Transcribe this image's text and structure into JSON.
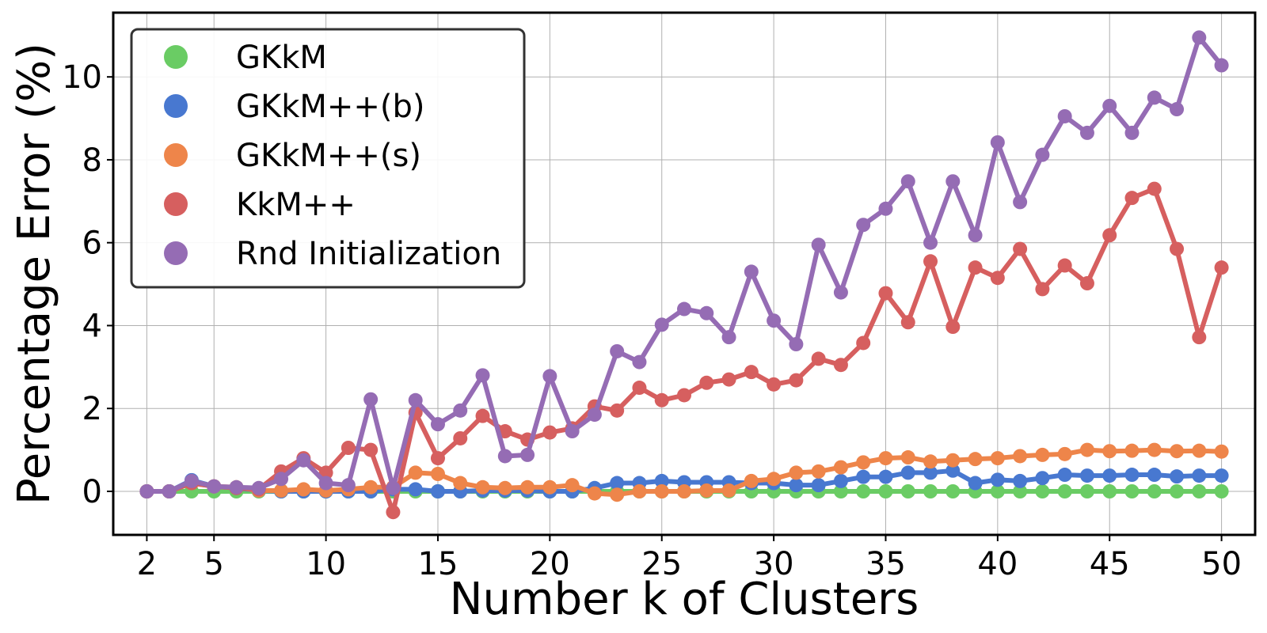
{
  "chart_data": {
    "type": "line",
    "xlabel": "Number k of Clusters",
    "ylabel": "Percentage Error (%)",
    "xlim": [
      0.5,
      51.5
    ],
    "ylim": [
      -1.05,
      11.55
    ],
    "xticks": [
      2,
      5,
      10,
      15,
      20,
      25,
      30,
      35,
      40,
      45,
      50
    ],
    "yticks": [
      0,
      2,
      4,
      6,
      8,
      10
    ],
    "grid": true,
    "legend_position": "top-left",
    "x": [
      2,
      3,
      4,
      5,
      6,
      7,
      8,
      9,
      10,
      11,
      12,
      13,
      14,
      15,
      16,
      17,
      18,
      19,
      20,
      21,
      22,
      23,
      24,
      25,
      26,
      27,
      28,
      29,
      30,
      31,
      32,
      33,
      34,
      35,
      36,
      37,
      38,
      39,
      40,
      41,
      42,
      43,
      44,
      45,
      46,
      47,
      48,
      49,
      50
    ],
    "series": [
      {
        "name": "GKkM",
        "color": "#6acc64",
        "values": [
          0,
          0,
          0,
          0,
          0,
          0,
          0,
          0,
          0,
          0,
          0,
          0,
          0,
          0,
          0,
          0,
          0,
          0,
          0,
          0,
          0,
          0,
          0,
          0,
          0,
          0,
          0,
          0,
          0,
          0,
          0,
          0,
          0,
          0,
          0,
          0,
          0,
          0,
          0,
          0,
          0,
          0,
          0,
          0,
          0,
          0,
          0,
          0,
          0
        ]
      },
      {
        "name": "GKkM++(b)",
        "color": "#4878d0",
        "values": [
          0,
          0,
          0.27,
          0.12,
          0.08,
          0.02,
          0,
          0,
          0,
          0,
          0,
          0.05,
          0.05,
          0,
          0,
          0.02,
          0.02,
          0.02,
          0,
          0,
          0.08,
          0.2,
          0.2,
          0.25,
          0.22,
          0.22,
          0.22,
          0.2,
          0.2,
          0.15,
          0.15,
          0.25,
          0.35,
          0.35,
          0.45,
          0.45,
          0.5,
          0.2,
          0.28,
          0.25,
          0.32,
          0.4,
          0.38,
          0.38,
          0.4,
          0.4,
          0.36,
          0.38,
          0.38
        ]
      },
      {
        "name": "GKkM++(s)",
        "color": "#ee854a",
        "values": [
          0,
          0,
          0.2,
          0.12,
          0.1,
          0.02,
          0.02,
          0.05,
          0.02,
          0.05,
          0.1,
          0.1,
          0.45,
          0.42,
          0.2,
          0.1,
          0.08,
          0.1,
          0.1,
          0.15,
          -0.05,
          -0.08,
          0,
          0,
          0,
          0.02,
          0.02,
          0.25,
          0.3,
          0.45,
          0.48,
          0.58,
          0.7,
          0.8,
          0.82,
          0.72,
          0.75,
          0.78,
          0.8,
          0.85,
          0.88,
          0.9,
          1.0,
          0.97,
          0.98,
          1.0,
          0.97,
          0.98,
          0.96
        ]
      },
      {
        "name": "KkM++",
        "color": "#d65f5f",
        "values": [
          0,
          0,
          0.2,
          0.12,
          0.08,
          0.05,
          0.48,
          0.8,
          0.45,
          1.05,
          1.0,
          -0.5,
          1.9,
          0.8,
          1.28,
          1.82,
          1.45,
          1.25,
          1.42,
          1.52,
          2.05,
          1.95,
          2.5,
          2.2,
          2.32,
          2.62,
          2.7,
          2.88,
          2.58,
          2.68,
          3.2,
          3.05,
          3.58,
          4.78,
          4.08,
          5.55,
          3.97,
          5.4,
          5.15,
          5.85,
          4.88,
          5.45,
          5.02,
          6.18,
          7.08,
          7.3,
          5.85,
          3.72,
          5.4
        ]
      },
      {
        "name": "Rnd Initialization",
        "color": "#956cb4",
        "values": [
          0,
          0,
          0.25,
          0.12,
          0.1,
          0.08,
          0.3,
          0.75,
          0.2,
          0.15,
          2.22,
          0.08,
          2.2,
          1.62,
          1.95,
          2.8,
          0.85,
          0.88,
          2.78,
          1.45,
          1.85,
          3.38,
          3.12,
          4.02,
          4.4,
          4.3,
          3.72,
          5.3,
          4.12,
          3.55,
          5.95,
          4.8,
          6.43,
          6.82,
          7.48,
          6.0,
          7.48,
          6.18,
          8.42,
          6.98,
          8.12,
          9.05,
          8.65,
          9.3,
          8.65,
          9.5,
          9.22,
          10.95,
          10.28
        ]
      }
    ]
  }
}
